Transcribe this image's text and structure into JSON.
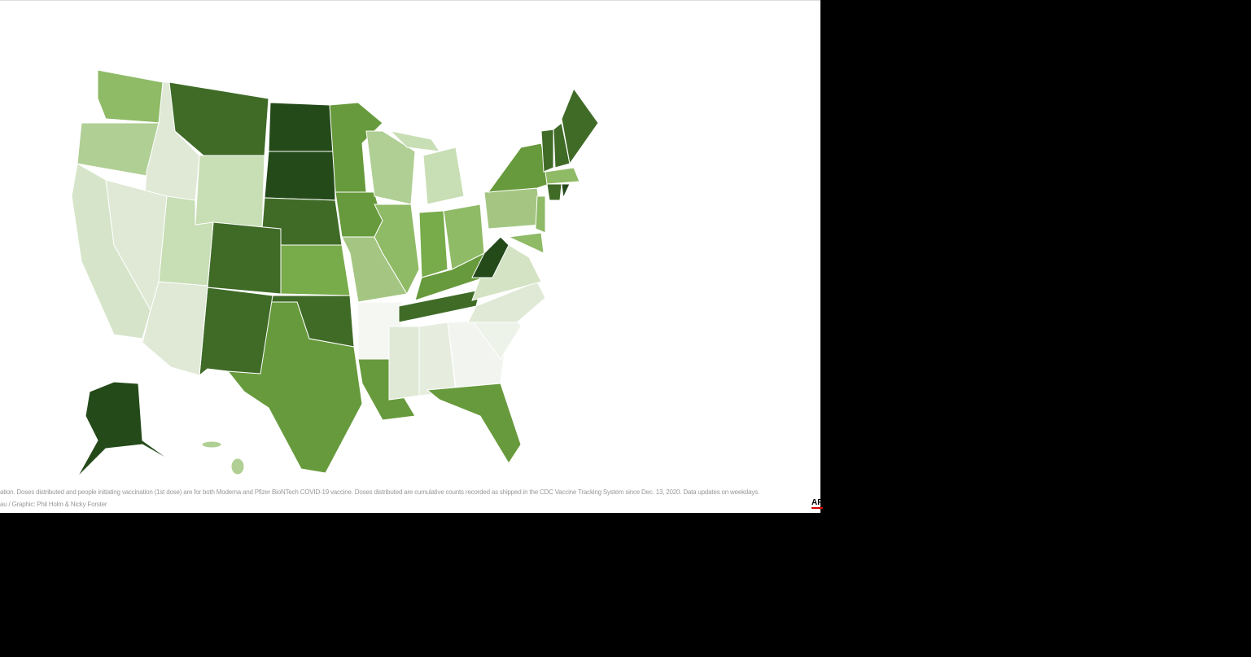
{
  "footnote": {
    "note": "ation. Doses distributed and people initiating vaccination (1st dose) are for both Moderna and Pfizer BioNTech COVID-19 vaccine. Doses distributed are cumulative counts recorded as shipped in the CDC Vaccine Tracking System since Dec. 13, 2020. Data updates on weekdays.",
    "credit": "au / Graphic: Phil Holm & Nicky Forster"
  },
  "logo": "AP"
}
